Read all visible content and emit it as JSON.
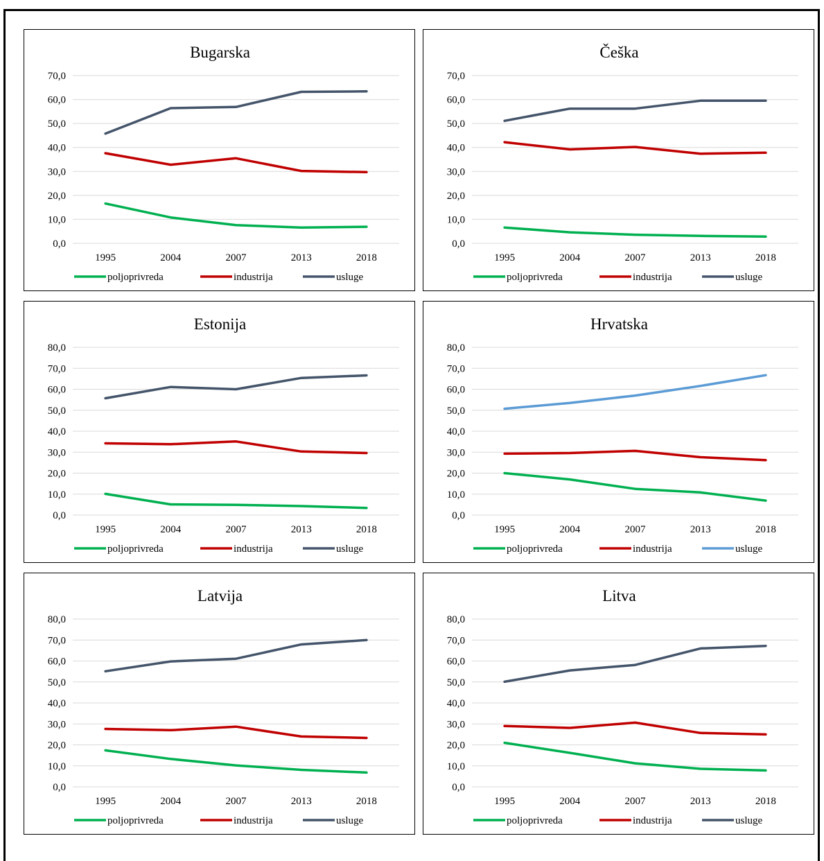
{
  "colors": {
    "poljoprivreda": "#00b050",
    "industrija": "#c00000",
    "usluge": "#44546a",
    "usluge_alt": "#5b9bd5"
  },
  "chart_data": [
    {
      "type": "line",
      "title": "Bugarska",
      "x": [
        "1995",
        "2004",
        "2007",
        "2013",
        "2018"
      ],
      "ylim": [
        0,
        70
      ],
      "yticks": [
        "0,0",
        "10,0",
        "20,0",
        "30,0",
        "40,0",
        "50,0",
        "60,0",
        "70,0"
      ],
      "grid": true,
      "legend_position": "bottom",
      "series": [
        {
          "name": "poljoprivreda",
          "values": [
            16.6,
            10.8,
            7.6,
            6.6,
            6.9
          ],
          "color": "#00b050"
        },
        {
          "name": "industrija",
          "values": [
            37.6,
            32.8,
            35.5,
            30.2,
            29.7
          ],
          "color": "#c00000"
        },
        {
          "name": "usluge",
          "values": [
            45.8,
            56.4,
            56.9,
            63.2,
            63.4
          ],
          "color": "#44546a"
        }
      ]
    },
    {
      "type": "line",
      "title": "Češka",
      "x": [
        "1995",
        "2004",
        "2007",
        "2013",
        "2018"
      ],
      "ylim": [
        0,
        70
      ],
      "yticks": [
        "0,0",
        "10,0",
        "20,0",
        "30,0",
        "40,0",
        "50,0",
        "60,0",
        "70,0"
      ],
      "grid": true,
      "legend_position": "bottom",
      "series": [
        {
          "name": "poljoprivreda",
          "values": [
            6.6,
            4.6,
            3.6,
            3.1,
            2.8
          ],
          "color": "#00b050"
        },
        {
          "name": "industrija",
          "values": [
            42.2,
            39.2,
            40.2,
            37.4,
            37.8
          ],
          "color": "#c00000"
        },
        {
          "name": "usluge",
          "values": [
            51.1,
            56.2,
            56.2,
            59.5,
            59.5
          ],
          "color": "#44546a"
        }
      ]
    },
    {
      "type": "line",
      "title": "Estonija",
      "x": [
        "1995",
        "2004",
        "2007",
        "2013",
        "2018"
      ],
      "ylim": [
        0,
        80
      ],
      "yticks": [
        "0,0",
        "10,0",
        "20,0",
        "30,0",
        "40,0",
        "50,0",
        "60,0",
        "70,0",
        "80,0"
      ],
      "grid": true,
      "legend_position": "bottom",
      "series": [
        {
          "name": "poljoprivreda",
          "values": [
            10.1,
            5.1,
            4.9,
            4.3,
            3.4
          ],
          "color": "#00b050"
        },
        {
          "name": "industrija",
          "values": [
            34.2,
            33.8,
            35.1,
            30.3,
            29.6
          ],
          "color": "#c00000"
        },
        {
          "name": "usluge",
          "values": [
            55.7,
            61.1,
            60.0,
            65.4,
            66.6
          ],
          "color": "#44546a"
        }
      ]
    },
    {
      "type": "line",
      "title": "Hrvatska",
      "x": [
        "1995",
        "2004",
        "2007",
        "2013",
        "2018"
      ],
      "ylim": [
        0,
        80
      ],
      "yticks": [
        "0,0",
        "10,0",
        "20,0",
        "30,0",
        "40,0",
        "50,0",
        "60,0",
        "70,0",
        "80,0"
      ],
      "grid": true,
      "legend_position": "bottom",
      "series": [
        {
          "name": "poljoprivreda",
          "values": [
            20.0,
            17.0,
            12.5,
            10.8,
            6.9
          ],
          "color": "#00b050"
        },
        {
          "name": "industrija",
          "values": [
            29.3,
            29.6,
            30.6,
            27.6,
            26.2
          ],
          "color": "#c00000"
        },
        {
          "name": "usluge",
          "values": [
            50.7,
            53.5,
            57.0,
            61.6,
            66.7
          ],
          "color": "#5b9bd5"
        }
      ]
    },
    {
      "type": "line",
      "title": "Latvija",
      "x": [
        "1995",
        "2004",
        "2007",
        "2013",
        "2018"
      ],
      "ylim": [
        0,
        80
      ],
      "yticks": [
        "0,0",
        "10,0",
        "20,0",
        "30,0",
        "40,0",
        "50,0",
        "60,0",
        "70,0",
        "80,0"
      ],
      "grid": true,
      "legend_position": "bottom",
      "series": [
        {
          "name": "poljoprivreda",
          "values": [
            17.4,
            13.3,
            10.2,
            8.1,
            6.8
          ],
          "color": "#00b050"
        },
        {
          "name": "industrija",
          "values": [
            27.6,
            27.0,
            28.7,
            24.0,
            23.3
          ],
          "color": "#c00000"
        },
        {
          "name": "usluge",
          "values": [
            55.1,
            59.8,
            61.1,
            67.9,
            70.0
          ],
          "color": "#44546a"
        }
      ]
    },
    {
      "type": "line",
      "title": "Litva",
      "x": [
        "1995",
        "2004",
        "2007",
        "2013",
        "2018"
      ],
      "ylim": [
        0,
        80
      ],
      "yticks": [
        "0,0",
        "10,0",
        "20,0",
        "30,0",
        "40,0",
        "50,0",
        "60,0",
        "70,0",
        "80,0"
      ],
      "grid": true,
      "legend_position": "bottom",
      "series": [
        {
          "name": "poljoprivreda",
          "values": [
            21.0,
            16.2,
            11.2,
            8.6,
            7.8
          ],
          "color": "#00b050"
        },
        {
          "name": "industrija",
          "values": [
            29.0,
            28.1,
            30.6,
            25.7,
            25.0
          ],
          "color": "#c00000"
        },
        {
          "name": "usluge",
          "values": [
            50.1,
            55.5,
            58.1,
            66.0,
            67.2
          ],
          "color": "#44546a"
        }
      ]
    }
  ]
}
